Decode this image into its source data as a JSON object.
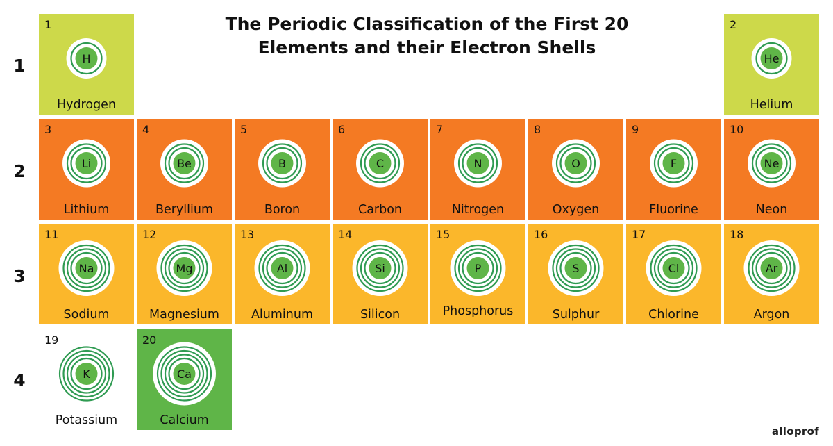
{
  "title": {
    "line1": "The Periodic Classification of the First 20",
    "line2": "Elements and their Electron Shells"
  },
  "periods": [
    "1",
    "2",
    "3",
    "4"
  ],
  "colors": {
    "period1": "#cdd94a",
    "period2": "#f47a23",
    "period3": "#fbb72b",
    "potassium": "#ffffff",
    "calcium": "#5fb548",
    "nucleus": "#5fb548",
    "shell": "#2f9b52"
  },
  "elements": [
    {
      "number": "1",
      "symbol": "H",
      "name": "Hydrogen"
    },
    {
      "number": "2",
      "symbol": "He",
      "name": "Helium"
    },
    {
      "number": "3",
      "symbol": "Li",
      "name": "Lithium"
    },
    {
      "number": "4",
      "symbol": "Be",
      "name": "Beryllium"
    },
    {
      "number": "5",
      "symbol": "B",
      "name": "Boron"
    },
    {
      "number": "6",
      "symbol": "C",
      "name": "Carbon"
    },
    {
      "number": "7",
      "symbol": "N",
      "name": "Nitrogen"
    },
    {
      "number": "8",
      "symbol": "O",
      "name": "Oxygen"
    },
    {
      "number": "9",
      "symbol": "F",
      "name": "Fluorine"
    },
    {
      "number": "10",
      "symbol": "Ne",
      "name": "Neon"
    },
    {
      "number": "11",
      "symbol": "Na",
      "name": "Sodium"
    },
    {
      "number": "12",
      "symbol": "Mg",
      "name": "Magnesium"
    },
    {
      "number": "13",
      "symbol": "Al",
      "name": "Aluminum"
    },
    {
      "number": "14",
      "symbol": "Si",
      "name": "Silicon"
    },
    {
      "number": "15",
      "symbol": "P",
      "name": "Phosphorus"
    },
    {
      "number": "16",
      "symbol": "S",
      "name": "Sulphur"
    },
    {
      "number": "17",
      "symbol": "Cl",
      "name": "Chlorine"
    },
    {
      "number": "18",
      "symbol": "Ar",
      "name": "Argon"
    },
    {
      "number": "19",
      "symbol": "K",
      "name": "Potassium"
    },
    {
      "number": "20",
      "symbol": "Ca",
      "name": "Calcium"
    }
  ],
  "brand": "alloprof"
}
